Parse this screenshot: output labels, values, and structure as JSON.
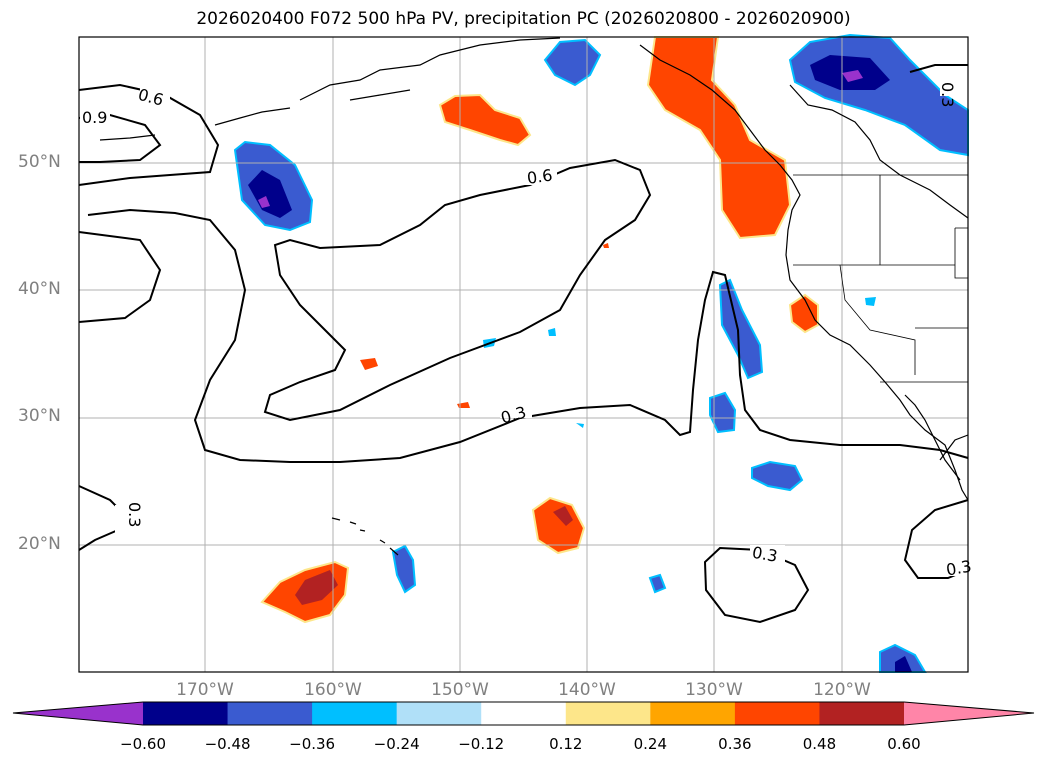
{
  "title": "2026020400 F072 500 hPa PV, precipitation PC (2026020800 - 2026020900)",
  "axes": {
    "lat_labels": [
      "50°N",
      "40°N",
      "30°N",
      "20°N"
    ],
    "lon_labels": [
      "170°W",
      "160°W",
      "150°W",
      "140°W",
      "130°W",
      "120°W"
    ]
  },
  "contour_labels": [
    "0.6",
    "0.9",
    "0.6",
    "0.3",
    "0.3",
    "0.3",
    "0.3",
    "0.3"
  ],
  "colorbar": {
    "ticks": [
      "−0.60",
      "−0.48",
      "−0.36",
      "−0.24",
      "−0.12",
      "0.12",
      "0.24",
      "0.36",
      "0.48",
      "0.60"
    ],
    "colors": [
      "#9932cc",
      "#00008b",
      "#3a5bd0",
      "#00bfff",
      "#b0e0f8",
      "#ffffff",
      "#fde68a",
      "#ffa500",
      "#ff4500",
      "#b22222",
      "#ff85a8"
    ]
  },
  "colors": {
    "contour": "#000000",
    "coast": "#000000",
    "grid": "#b0b0b0",
    "label": "#808080"
  }
}
